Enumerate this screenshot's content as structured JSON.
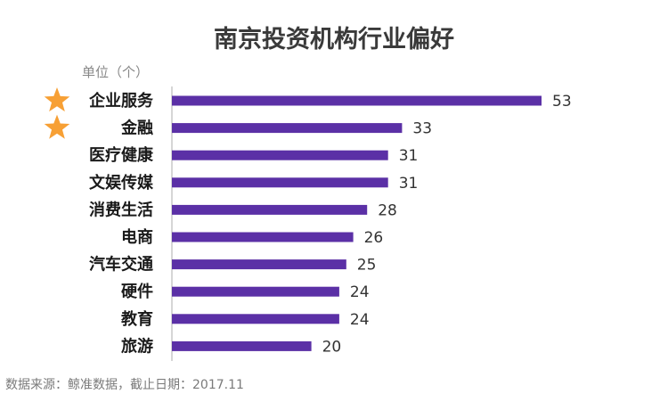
{
  "chart_data": {
    "type": "bar",
    "orientation": "horizontal",
    "title": "南京投资机构行业偏好",
    "unit_label": "单位（个）",
    "categories": [
      "企业服务",
      "金融",
      "医疗健康",
      "文娱传媒",
      "消费生活",
      "电商",
      "汽车交通",
      "硬件",
      "教育",
      "旅游"
    ],
    "values": [
      53,
      33,
      31,
      31,
      28,
      26,
      25,
      24,
      24,
      20
    ],
    "starred": [
      "企业服务",
      "金融"
    ],
    "xlim": [
      0,
      53
    ],
    "grid": false,
    "bar_color": "#5b30a6",
    "star_color": "#f7a035",
    "source": "数据来源：鲸准数据，截止日期：2017.11"
  }
}
